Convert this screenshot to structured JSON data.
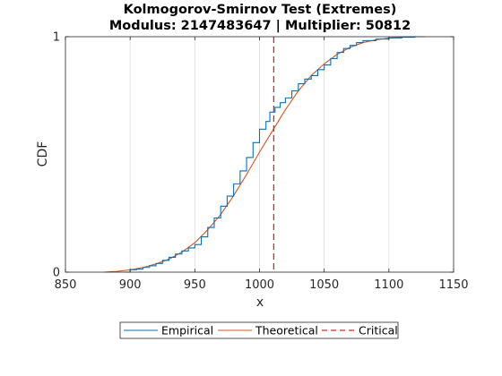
{
  "chart_data": {
    "type": "line",
    "title": "Kolmogorov-Smirnov Test (Extremes)",
    "subtitle": "Modulus: 2147483647 | Multiplier: 50812",
    "xlabel": "x",
    "ylabel": "CDF",
    "xlim": [
      850,
      1150
    ],
    "ylim": [
      0,
      1
    ],
    "xticks": [
      "850",
      "900",
      "950",
      "1000",
      "1050",
      "1100",
      "1150"
    ],
    "yticks": [
      "0",
      "1"
    ],
    "grid": "vertical",
    "legend_position": "bottom-outside",
    "series": [
      {
        "name": "Empirical",
        "style": "step",
        "color": "#0072BD",
        "points": [
          [
            896,
            0.0
          ],
          [
            900,
            0.01
          ],
          [
            905,
            0.013
          ],
          [
            910,
            0.02
          ],
          [
            915,
            0.027
          ],
          [
            920,
            0.037
          ],
          [
            925,
            0.05
          ],
          [
            930,
            0.063
          ],
          [
            935,
            0.077
          ],
          [
            940,
            0.09
          ],
          [
            945,
            0.103
          ],
          [
            950,
            0.117
          ],
          [
            955,
            0.15
          ],
          [
            960,
            0.19
          ],
          [
            965,
            0.23
          ],
          [
            970,
            0.28
          ],
          [
            975,
            0.323
          ],
          [
            980,
            0.375
          ],
          [
            985,
            0.43
          ],
          [
            990,
            0.487
          ],
          [
            995,
            0.55
          ],
          [
            1000,
            0.607
          ],
          [
            1005,
            0.64
          ],
          [
            1008,
            0.68
          ],
          [
            1012,
            0.7
          ],
          [
            1016,
            0.72
          ],
          [
            1020,
            0.74
          ],
          [
            1025,
            0.77
          ],
          [
            1030,
            0.8
          ],
          [
            1035,
            0.82
          ],
          [
            1040,
            0.835
          ],
          [
            1045,
            0.86
          ],
          [
            1050,
            0.88
          ],
          [
            1055,
            0.907
          ],
          [
            1060,
            0.933
          ],
          [
            1065,
            0.95
          ],
          [
            1070,
            0.963
          ],
          [
            1075,
            0.975
          ],
          [
            1080,
            0.983
          ],
          [
            1090,
            0.99
          ],
          [
            1100,
            0.995
          ],
          [
            1110,
            0.998
          ],
          [
            1120,
            1.0
          ],
          [
            1125,
            1.0
          ]
        ]
      },
      {
        "name": "Theoretical",
        "style": "line",
        "color": "#D95319",
        "points": [
          [
            880,
            0.0
          ],
          [
            890,
            0.003
          ],
          [
            900,
            0.01
          ],
          [
            910,
            0.02
          ],
          [
            920,
            0.035
          ],
          [
            930,
            0.055
          ],
          [
            940,
            0.085
          ],
          [
            950,
            0.125
          ],
          [
            960,
            0.18
          ],
          [
            970,
            0.245
          ],
          [
            980,
            0.325
          ],
          [
            990,
            0.415
          ],
          [
            1000,
            0.51
          ],
          [
            1010,
            0.6
          ],
          [
            1020,
            0.69
          ],
          [
            1030,
            0.77
          ],
          [
            1040,
            0.835
          ],
          [
            1050,
            0.885
          ],
          [
            1060,
            0.925
          ],
          [
            1070,
            0.955
          ],
          [
            1080,
            0.975
          ],
          [
            1090,
            0.987
          ],
          [
            1100,
            0.994
          ],
          [
            1110,
            0.998
          ],
          [
            1120,
            1.0
          ],
          [
            1128,
            1.0
          ]
        ]
      },
      {
        "name": "Critical",
        "style": "dashed",
        "color": "#D62728",
        "x": 1011
      }
    ]
  }
}
